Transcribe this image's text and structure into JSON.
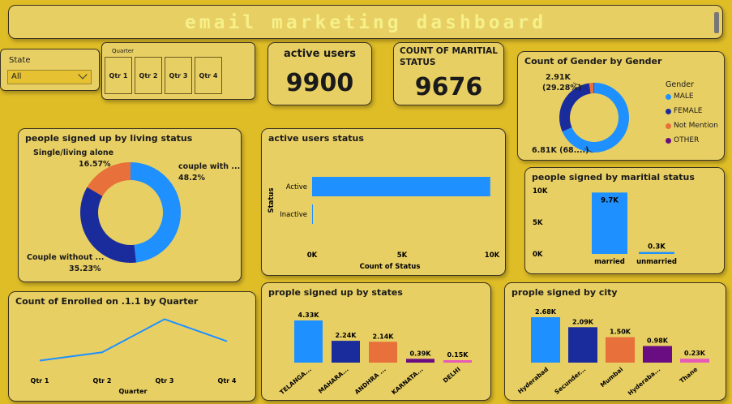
{
  "header": {
    "title": "email marketing dashboard"
  },
  "state_filter": {
    "label": "State",
    "value": "All"
  },
  "quarter_filter": {
    "label": "Quarter",
    "options": [
      "Qtr 1",
      "Qtr 2",
      "Qtr 3",
      "Qtr 4"
    ]
  },
  "kpis": {
    "active_users": {
      "label": "active users",
      "value": "9900"
    },
    "maritial": {
      "label_line1": "COUNT OF MARITIAL",
      "label_line2": "STATUS",
      "value": "9676"
    }
  },
  "gender_card": {
    "title": "Count of Gender by Gender",
    "legend_title": "Gender",
    "label_female_value": "2.91K",
    "label_female_pct": "(29.28%)",
    "label_male": "6.81K (68....)"
  },
  "living_card": {
    "title": "people signed up by living status",
    "labels": {
      "single_name": "Single/living alone",
      "single_pct": "16.57%",
      "couple_with_name": "couple with ...",
      "couple_with_pct": "48.2%",
      "couple_without_name": "Couple without ...",
      "couple_without_pct": "35.23%"
    }
  },
  "active_status_card": {
    "title": "active users status",
    "ylabel": "Status",
    "xlabel": "Count of Status"
  },
  "maritial_card": {
    "title": "people signed by maritial status"
  },
  "quarter_line_card": {
    "title": "Count of Enrolled on .1.1 by Quarter",
    "xlabel": "Quarter"
  },
  "states_card": {
    "title": "prople signed up by states"
  },
  "city_card": {
    "title": "prople signed by city"
  },
  "colors": {
    "background": "#dfbd27",
    "card": "#e8cf63",
    "male": "#1e90ff",
    "female": "#1a2c9c",
    "not_mention": "#e8703a",
    "other": "#6a0d83",
    "pink": "#e75ab6"
  },
  "chart_data": [
    {
      "type": "pie",
      "title": "Count of Gender by Gender",
      "legend_title": "Gender",
      "labels": [
        "MALE",
        "FEMALE",
        "Not Mention",
        "OTHER"
      ],
      "values": [
        6810,
        2910,
        200,
        30
      ],
      "colors": [
        "#1e90ff",
        "#1a2c9c",
        "#e8703a",
        "#6a0d83"
      ]
    },
    {
      "type": "pie",
      "title": "people signed up by living status",
      "labels": [
        "couple with ...",
        "Couple without ...",
        "Single/living alone"
      ],
      "values": [
        48.2,
        35.23,
        16.57
      ],
      "colors": [
        "#1e90ff",
        "#1a2c9c",
        "#e8703a"
      ]
    },
    {
      "type": "bar",
      "orientation": "horizontal",
      "title": "active users status",
      "categories": [
        "Active",
        "Inactive"
      ],
      "values": [
        9900,
        40
      ],
      "xlabel": "Count of Status",
      "ylabel": "Status",
      "xlim": [
        0,
        10000
      ],
      "ticks": [
        "0K",
        "5K",
        "10K"
      ]
    },
    {
      "type": "bar",
      "title": "people signed by maritial status",
      "categories": [
        "married",
        "unmarried"
      ],
      "values": [
        9700,
        300
      ],
      "value_labels": [
        "9.7K",
        "0.3K"
      ],
      "ylim": [
        0,
        10000
      ],
      "ticks": [
        "0K",
        "5K",
        "10K"
      ]
    },
    {
      "type": "line",
      "title": "Count of Enrolled on .1.1 by Quarter",
      "categories": [
        "Qtr 1",
        "Qtr 2",
        "Qtr 3",
        "Qtr 4"
      ],
      "values": [
        2000,
        2600,
        5000,
        3400
      ],
      "xlabel": "Quarter"
    },
    {
      "type": "bar",
      "title": "prople signed up by states",
      "categories": [
        "TELANGA...",
        "MAHARA...",
        "ANDHRA ...",
        "KARNATA...",
        "DELHI"
      ],
      "values": [
        4330,
        2240,
        2140,
        390,
        150
      ],
      "value_labels": [
        "4.33K",
        "2.24K",
        "2.14K",
        "0.39K",
        "0.15K"
      ],
      "colors": [
        "#1e90ff",
        "#1a2c9c",
        "#e8703a",
        "#6a0d83",
        "#e75ab6"
      ]
    },
    {
      "type": "bar",
      "title": "prople signed by city",
      "categories": [
        "Hyderabad",
        "Secunder...",
        "Mumbai",
        "Hyderaba...",
        "Thane"
      ],
      "values": [
        2680,
        2090,
        1500,
        980,
        230
      ],
      "value_labels": [
        "2.68K",
        "2.09K",
        "1.50K",
        "0.98K",
        "0.23K"
      ],
      "colors": [
        "#1e90ff",
        "#1a2c9c",
        "#e8703a",
        "#6a0d83",
        "#e75ab6"
      ]
    }
  ]
}
